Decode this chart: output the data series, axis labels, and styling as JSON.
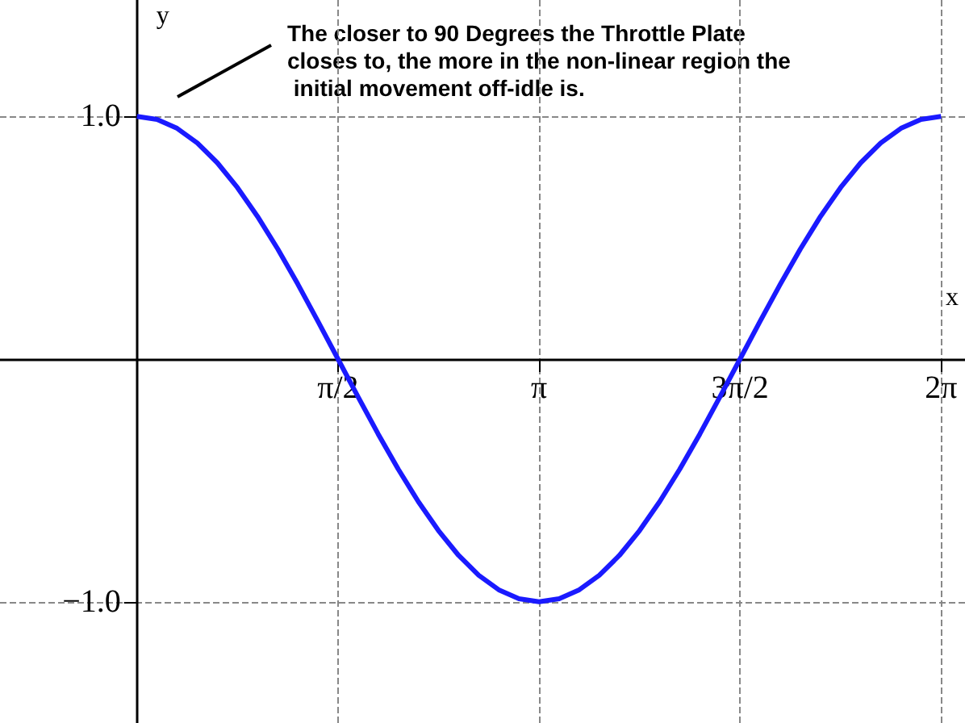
{
  "chart_data": {
    "type": "line",
    "xlabel": "x",
    "ylabel": "y",
    "annotations": [
      "The closer to 90 Degrees the Throttle Plate closes to, the more in the non-linear region the initial movement off-idle is."
    ],
    "x": [
      0,
      0.157,
      0.314,
      0.471,
      0.628,
      0.785,
      0.942,
      1.1,
      1.257,
      1.414,
      1.571,
      1.728,
      1.885,
      2.042,
      2.199,
      2.356,
      2.513,
      2.67,
      2.827,
      2.985,
      3.142,
      3.299,
      3.456,
      3.613,
      3.77,
      3.927,
      4.084,
      4.241,
      4.398,
      4.555,
      4.712,
      4.869,
      5.027,
      5.184,
      5.341,
      5.498,
      5.655,
      5.812,
      5.969,
      6.126,
      6.283
    ],
    "series": [
      {
        "color": "#1a1aff",
        "values": [
          1,
          0.988,
          0.951,
          0.891,
          0.809,
          0.707,
          0.588,
          0.454,
          0.309,
          0.156,
          0,
          -0.156,
          -0.309,
          -0.454,
          -0.588,
          -0.707,
          -0.809,
          -0.891,
          -0.951,
          -0.988,
          -1,
          -0.988,
          -0.951,
          -0.891,
          -0.809,
          -0.707,
          -0.588,
          -0.454,
          -0.309,
          -0.156,
          0,
          0.156,
          0.309,
          0.454,
          0.588,
          0.707,
          0.809,
          0.891,
          0.951,
          0.988,
          1
        ]
      }
    ],
    "xlim": [
      -1.07,
      6.47
    ],
    "ylim": [
      -1.5,
      1.48
    ],
    "xticks": [
      {
        "value": 1.5708,
        "label": "π/2"
      },
      {
        "value": 3.1416,
        "label": "π"
      },
      {
        "value": 4.7124,
        "label": "3π/2"
      },
      {
        "value": 6.2832,
        "label": "2π"
      }
    ],
    "yticks": [
      {
        "value": 1,
        "label": "1.0"
      },
      {
        "value": -1,
        "label": "−1.0"
      }
    ],
    "grid": true,
    "marker": "none",
    "line_style": "solid"
  }
}
